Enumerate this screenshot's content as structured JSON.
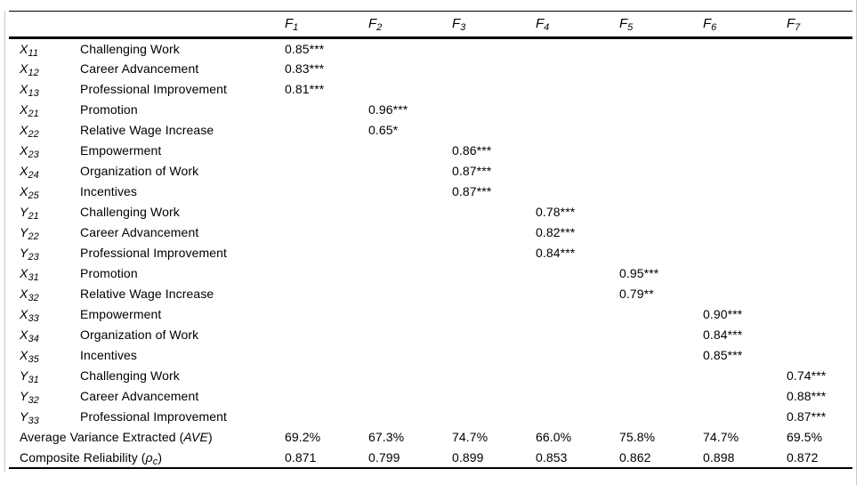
{
  "page": {
    "background": "#ffffff",
    "text_color": "#000000",
    "rule_color": "#000000",
    "frame_line_color": "#c6c6c6"
  },
  "table": {
    "factors": [
      {
        "base": "F",
        "sub": "1"
      },
      {
        "base": "F",
        "sub": "2"
      },
      {
        "base": "F",
        "sub": "3"
      },
      {
        "base": "F",
        "sub": "4"
      },
      {
        "base": "F",
        "sub": "5"
      },
      {
        "base": "F",
        "sub": "6"
      },
      {
        "base": "F",
        "sub": "7"
      }
    ],
    "rows": [
      {
        "id_base": "X",
        "id_sub": "11",
        "label": "Challenging Work",
        "values": [
          "0.85***",
          "",
          "",
          "",
          "",
          "",
          ""
        ]
      },
      {
        "id_base": "X",
        "id_sub": "12",
        "label": "Career Advancement",
        "values": [
          "0.83***",
          "",
          "",
          "",
          "",
          "",
          ""
        ]
      },
      {
        "id_base": "X",
        "id_sub": "13",
        "label": "Professional Improvement",
        "values": [
          "0.81***",
          "",
          "",
          "",
          "",
          "",
          ""
        ]
      },
      {
        "id_base": "X",
        "id_sub": "21",
        "label": "Promotion",
        "values": [
          "",
          "0.96***",
          "",
          "",
          "",
          "",
          ""
        ]
      },
      {
        "id_base": "X",
        "id_sub": "22",
        "label": "Relative Wage Increase",
        "values": [
          "",
          "0.65*",
          "",
          "",
          "",
          "",
          ""
        ]
      },
      {
        "id_base": "X",
        "id_sub": "23",
        "label": "Empowerment",
        "values": [
          "",
          "",
          "0.86***",
          "",
          "",
          "",
          ""
        ]
      },
      {
        "id_base": "X",
        "id_sub": "24",
        "label": "Organization of Work",
        "values": [
          "",
          "",
          "0.87***",
          "",
          "",
          "",
          ""
        ]
      },
      {
        "id_base": "X",
        "id_sub": "25",
        "label": "Incentives",
        "values": [
          "",
          "",
          "0.87***",
          "",
          "",
          "",
          ""
        ]
      },
      {
        "id_base": "Y",
        "id_sub": "21",
        "label": "Challenging Work",
        "values": [
          "",
          "",
          "",
          "0.78***",
          "",
          "",
          ""
        ]
      },
      {
        "id_base": "Y",
        "id_sub": "22",
        "label": "Career Advancement",
        "values": [
          "",
          "",
          "",
          "0.82***",
          "",
          "",
          ""
        ]
      },
      {
        "id_base": "Y",
        "id_sub": "23",
        "label": "Professional Improvement",
        "values": [
          "",
          "",
          "",
          "0.84***",
          "",
          "",
          ""
        ]
      },
      {
        "id_base": "X",
        "id_sub": "31",
        "label": "Promotion",
        "values": [
          "",
          "",
          "",
          "",
          "0.95***",
          "",
          ""
        ]
      },
      {
        "id_base": "X",
        "id_sub": "32",
        "label": "Relative Wage Increase",
        "values": [
          "",
          "",
          "",
          "",
          "0.79**",
          "",
          ""
        ]
      },
      {
        "id_base": "X",
        "id_sub": "33",
        "label": "Empowerment",
        "values": [
          "",
          "",
          "",
          "",
          "",
          "0.90***",
          ""
        ]
      },
      {
        "id_base": "X",
        "id_sub": "34",
        "label": "Organization of Work",
        "values": [
          "",
          "",
          "",
          "",
          "",
          "0.84***",
          ""
        ]
      },
      {
        "id_base": "X",
        "id_sub": "35",
        "label": "Incentives",
        "values": [
          "",
          "",
          "",
          "",
          "",
          "0.85***",
          ""
        ]
      },
      {
        "id_base": "Y",
        "id_sub": "31",
        "label": "Challenging Work",
        "values": [
          "",
          "",
          "",
          "",
          "",
          "",
          "0.74***"
        ]
      },
      {
        "id_base": "Y",
        "id_sub": "32",
        "label": "Career Advancement",
        "values": [
          "",
          "",
          "",
          "",
          "",
          "",
          "0.88***"
        ]
      },
      {
        "id_base": "Y",
        "id_sub": "33",
        "label": "Professional Improvement",
        "values": [
          "",
          "",
          "",
          "",
          "",
          "",
          "0.87***"
        ]
      }
    ],
    "summary_rows": [
      {
        "prefix": "Average Variance Extracted (",
        "em": "AVE",
        "em_sub": "",
        "suffix": ")",
        "values": [
          "69.2%",
          "67.3%",
          "74.7%",
          "66.0%",
          "75.8%",
          "74.7%",
          "69.5%"
        ]
      },
      {
        "prefix": "Composite Reliability (",
        "em": "ρ",
        "em_sub": "c",
        "suffix": ")",
        "values": [
          "0.871",
          "0.799",
          "0.899",
          "0.853",
          "0.862",
          "0.898",
          "0.872"
        ]
      }
    ]
  }
}
